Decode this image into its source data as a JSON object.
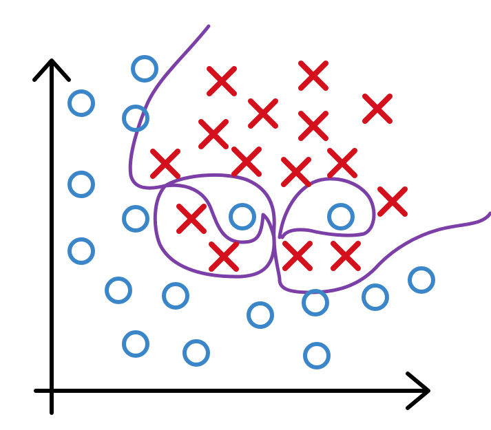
{
  "colors": {
    "axis": "#000000",
    "positive": "#d4101c",
    "negative": "#3a86c8",
    "boundary": "#7b3fa7",
    "background": "#ffffff"
  },
  "legend": {
    "positive_marker": "x-mark",
    "negative_marker": "circle"
  },
  "classes": {
    "negative": [
      [
        210,
        100
      ],
      [
        118,
        150
      ],
      [
        197,
        172
      ],
      [
        118,
        268
      ],
      [
        197,
        318
      ],
      [
        352,
        315
      ],
      [
        495,
        315
      ],
      [
        118,
        365
      ],
      [
        172,
        422
      ],
      [
        255,
        430
      ],
      [
        378,
        458
      ],
      [
        458,
        440
      ],
      [
        545,
        432
      ],
      [
        612,
        407
      ],
      [
        197,
        500
      ],
      [
        285,
        513
      ],
      [
        460,
        517
      ]
    ],
    "positive": [
      [
        322,
        118
      ],
      [
        455,
        110
      ],
      [
        382,
        165
      ],
      [
        548,
        158
      ],
      [
        310,
        195
      ],
      [
        455,
        183
      ],
      [
        240,
        238
      ],
      [
        358,
        235
      ],
      [
        430,
        250
      ],
      [
        497,
        237
      ],
      [
        570,
        293
      ],
      [
        278,
        318
      ],
      [
        325,
        373
      ],
      [
        432,
        372
      ],
      [
        502,
        372
      ]
    ]
  }
}
